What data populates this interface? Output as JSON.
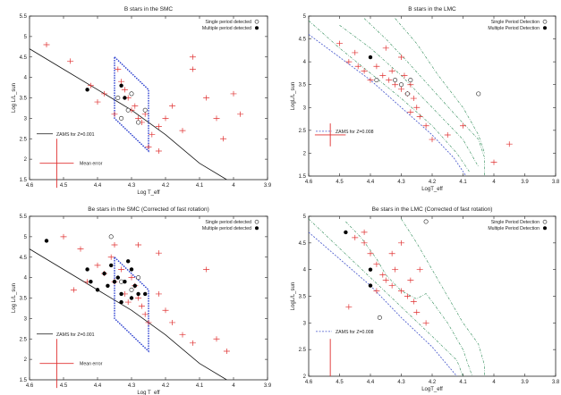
{
  "colors": {
    "axis": "#222222",
    "marker": "#e03030",
    "strip": "#2b3fcf",
    "zams_smc": "#111111",
    "zams_lmc": "#4455cc",
    "track": "#2e8b57"
  },
  "chart_data": [
    {
      "type": "scatter",
      "title": "B stars in the SMC",
      "xlabel": "Log T_eff",
      "ylabel": "Log L/L_sun",
      "xlim": [
        4.6,
        3.9
      ],
      "ylim": [
        1.5,
        5.5
      ],
      "xticks": [
        "4.6",
        "4.5",
        "4.4",
        "4.3",
        "4.2",
        "4.1",
        "4",
        "3.9"
      ],
      "yticks": [
        "1.5",
        "2",
        "2.5",
        "3",
        "3.5",
        "4",
        "4.5",
        "5",
        "5.5"
      ],
      "legend": {
        "single": "Single period detected",
        "multiple": "Multiple period detected",
        "zams": "ZAMS for Z=0.001",
        "error": "Mean error"
      },
      "zams": [
        [
          4.6,
          4.7
        ],
        [
          4.5,
          4.2
        ],
        [
          4.4,
          3.7
        ],
        [
          4.3,
          3.2
        ],
        [
          4.2,
          2.6
        ],
        [
          4.1,
          1.9
        ],
        [
          4.02,
          1.5
        ]
      ],
      "strip": [
        [
          4.35,
          4.5
        ],
        [
          4.25,
          3.7
        ],
        [
          4.25,
          2.2
        ],
        [
          4.35,
          3.0
        ]
      ],
      "crosses": [
        [
          4.55,
          4.8
        ],
        [
          4.48,
          4.4
        ],
        [
          4.42,
          3.8
        ],
        [
          4.38,
          3.6
        ],
        [
          4.34,
          4.2
        ],
        [
          4.33,
          3.9
        ],
        [
          4.32,
          3.7
        ],
        [
          4.31,
          3.5
        ],
        [
          4.3,
          3.2
        ],
        [
          4.29,
          3.3
        ],
        [
          4.28,
          3.0
        ],
        [
          4.27,
          2.9
        ],
        [
          4.26,
          3.1
        ],
        [
          4.24,
          2.6
        ],
        [
          4.22,
          2.8
        ],
        [
          4.2,
          3.0
        ],
        [
          4.18,
          3.3
        ],
        [
          4.15,
          2.7
        ],
        [
          4.12,
          4.2
        ],
        [
          4.12,
          4.5
        ],
        [
          4.08,
          3.5
        ],
        [
          4.05,
          3.0
        ],
        [
          4.03,
          2.5
        ],
        [
          4.0,
          3.6
        ],
        [
          3.98,
          3.1
        ],
        [
          4.25,
          2.3
        ],
        [
          4.22,
          2.2
        ],
        [
          4.4,
          3.4
        ],
        [
          4.35,
          3.1
        ]
      ],
      "singles": [
        [
          4.34,
          3.5
        ],
        [
          4.3,
          3.6
        ],
        [
          4.31,
          3.2
        ],
        [
          4.28,
          2.9
        ],
        [
          4.33,
          3.0
        ],
        [
          4.26,
          3.2
        ]
      ],
      "multiples": [
        [
          4.43,
          3.7
        ],
        [
          4.33,
          3.8
        ],
        [
          4.32,
          3.5
        ]
      ],
      "error_bar": {
        "x": 4.52,
        "y": 1.9,
        "dx": 0.05,
        "dy": 0.6
      }
    },
    {
      "type": "scatter",
      "title": "B stars in the LMC",
      "xlabel": "LogT_eff",
      "ylabel": "LogL/L_sun",
      "xlim": [
        4.6,
        3.8
      ],
      "ylim": [
        1.5,
        5.0
      ],
      "xticks": [
        "4.6",
        "4.5",
        "4.4",
        "4.3",
        "4.2",
        "4.1",
        "4",
        "3.9",
        "3.8"
      ],
      "yticks": [
        "1.5",
        "2",
        "2.5",
        "3",
        "3.5",
        "4",
        "4.5",
        "5"
      ],
      "legend": {
        "single": "Single Period Detection",
        "multiple": "Multiple Period Detection",
        "zams": "ZAMS for Z=0.008"
      },
      "zams": [
        [
          4.6,
          4.6
        ],
        [
          4.5,
          4.1
        ],
        [
          4.4,
          3.6
        ],
        [
          4.3,
          3.0
        ],
        [
          4.2,
          2.4
        ],
        [
          4.13,
          1.9
        ],
        [
          4.09,
          1.5
        ]
      ],
      "tracks": [
        [
          [
            4.6,
            4.9
          ],
          [
            4.5,
            4.3
          ],
          [
            4.4,
            3.75
          ],
          [
            4.3,
            3.2
          ],
          [
            4.2,
            2.6
          ],
          [
            4.12,
            2.0
          ],
          [
            4.08,
            1.6
          ]
        ],
        [
          [
            4.5,
            4.8
          ],
          [
            4.4,
            4.3
          ],
          [
            4.3,
            3.7
          ],
          [
            4.2,
            3.0
          ],
          [
            4.1,
            2.3
          ],
          [
            4.05,
            1.7
          ]
        ],
        [
          [
            4.42,
            4.95
          ],
          [
            4.35,
            4.5
          ],
          [
            4.28,
            4.0
          ],
          [
            4.2,
            3.4
          ],
          [
            4.12,
            2.8
          ],
          [
            4.05,
            2.3
          ],
          [
            4.03,
            1.9
          ],
          [
            4.03,
            1.5
          ]
        ],
        [
          [
            4.32,
            4.95
          ],
          [
            4.25,
            4.4
          ],
          [
            4.18,
            3.7
          ],
          [
            4.1,
            3.0
          ],
          [
            4.05,
            2.4
          ],
          [
            4.03,
            2.0
          ]
        ]
      ],
      "crosses": [
        [
          4.5,
          4.4
        ],
        [
          4.47,
          4.0
        ],
        [
          4.44,
          3.9
        ],
        [
          4.42,
          3.8
        ],
        [
          4.4,
          3.6
        ],
        [
          4.38,
          3.9
        ],
        [
          4.36,
          3.7
        ],
        [
          4.34,
          3.6
        ],
        [
          4.33,
          3.8
        ],
        [
          4.32,
          3.5
        ],
        [
          4.3,
          3.4
        ],
        [
          4.29,
          3.7
        ],
        [
          4.28,
          3.3
        ],
        [
          4.27,
          3.5
        ],
        [
          4.26,
          3.2
        ],
        [
          4.25,
          3.0
        ],
        [
          4.24,
          2.8
        ],
        [
          4.22,
          2.6
        ],
        [
          4.2,
          2.3
        ],
        [
          4.15,
          2.4
        ],
        [
          4.1,
          2.6
        ],
        [
          4.0,
          1.8
        ],
        [
          3.95,
          2.2
        ],
        [
          4.45,
          4.2
        ],
        [
          4.35,
          4.3
        ],
        [
          4.3,
          4.1
        ],
        [
          4.27,
          2.9
        ]
      ],
      "singles": [
        [
          4.38,
          3.6
        ],
        [
          4.32,
          3.6
        ],
        [
          4.3,
          3.5
        ],
        [
          4.28,
          3.3
        ],
        [
          4.27,
          3.6
        ],
        [
          4.05,
          3.3
        ]
      ],
      "multiples": [
        [
          4.4,
          4.1
        ]
      ],
      "error_bar": {
        "x": 4.53,
        "y": 2.4,
        "dx": 0.05,
        "dy": 0.25
      }
    },
    {
      "type": "scatter",
      "title": "Be stars in the SMC (Corrected of fast rotation)",
      "xlabel": "Log T_eff",
      "ylabel": "Log L/L_sun",
      "xlim": [
        4.6,
        3.9
      ],
      "ylim": [
        1.5,
        5.5
      ],
      "xticks": [
        "4.6",
        "4.5",
        "4.4",
        "4.3",
        "4.2",
        "4.1",
        "4",
        "3.9"
      ],
      "yticks": [
        "1.5",
        "2",
        "2.5",
        "3",
        "3.5",
        "4",
        "4.5",
        "5",
        "5.5"
      ],
      "legend": {
        "single": "Single period detected",
        "multiple": "Multiple period detected",
        "zams": "ZAMS for Z=0.001",
        "error": "Mean error"
      },
      "zams": [
        [
          4.6,
          4.7
        ],
        [
          4.5,
          4.2
        ],
        [
          4.4,
          3.7
        ],
        [
          4.3,
          3.2
        ],
        [
          4.2,
          2.6
        ],
        [
          4.1,
          1.9
        ],
        [
          4.02,
          1.5
        ]
      ],
      "strip": [
        [
          4.35,
          4.5
        ],
        [
          4.25,
          3.7
        ],
        [
          4.25,
          2.2
        ],
        [
          4.35,
          3.0
        ]
      ],
      "crosses": [
        [
          4.5,
          5.0
        ],
        [
          4.45,
          4.7
        ],
        [
          4.4,
          4.3
        ],
        [
          4.38,
          4.1
        ],
        [
          4.36,
          4.5
        ],
        [
          4.35,
          3.9
        ],
        [
          4.33,
          4.2
        ],
        [
          4.32,
          3.6
        ],
        [
          4.31,
          3.4
        ],
        [
          4.3,
          4.0
        ],
        [
          4.29,
          3.8
        ],
        [
          4.28,
          3.5
        ],
        [
          4.27,
          3.3
        ],
        [
          4.26,
          3.1
        ],
        [
          4.25,
          2.9
        ],
        [
          4.22,
          3.6
        ],
        [
          4.2,
          3.2
        ],
        [
          4.18,
          2.9
        ],
        [
          4.15,
          2.6
        ],
        [
          4.12,
          2.4
        ],
        [
          4.08,
          4.2
        ],
        [
          4.05,
          2.5
        ],
        [
          4.02,
          2.2
        ],
        [
          4.22,
          4.6
        ],
        [
          4.28,
          4.8
        ],
        [
          4.35,
          4.8
        ],
        [
          4.43,
          3.9
        ],
        [
          4.47,
          3.7
        ]
      ],
      "singles": [
        [
          4.36,
          5.0
        ],
        [
          4.33,
          3.9
        ],
        [
          4.3,
          3.7
        ],
        [
          4.28,
          4.0
        ]
      ],
      "multiples": [
        [
          4.55,
          4.9
        ],
        [
          4.43,
          4.2
        ],
        [
          4.42,
          3.9
        ],
        [
          4.4,
          3.7
        ],
        [
          4.38,
          4.1
        ],
        [
          4.37,
          3.8
        ],
        [
          4.36,
          4.3
        ],
        [
          4.35,
          3.9
        ],
        [
          4.34,
          4.0
        ],
        [
          4.33,
          3.6
        ],
        [
          4.32,
          3.9
        ],
        [
          4.31,
          4.4
        ],
        [
          4.3,
          4.2
        ],
        [
          4.29,
          3.8
        ],
        [
          4.28,
          3.6
        ],
        [
          4.26,
          3.6
        ],
        [
          4.3,
          3.5
        ],
        [
          4.33,
          3.4
        ]
      ],
      "error_bar": {
        "x": 4.52,
        "y": 1.9,
        "dx": 0.05,
        "dy": 0.6
      }
    },
    {
      "type": "scatter",
      "title": "Be stars in the LMC (Corrected of fast rotation)",
      "xlabel": "LogT_eff",
      "ylabel": "LogL/L_sun",
      "xlim": [
        4.6,
        3.8
      ],
      "ylim": [
        2.0,
        5.0
      ],
      "xticks": [
        "4.6",
        "4.5",
        "4.4",
        "4.3",
        "4.2",
        "4.1",
        "4",
        "3.9",
        "3.8"
      ],
      "yticks": [
        "2",
        "2.5",
        "3",
        "3.5",
        "4",
        "4.5",
        "5"
      ],
      "legend": {
        "single": "Single Period Detection",
        "multiple": "Multiple Period Detection",
        "zams": "ZAMS for Z=0.008"
      },
      "zams": [
        [
          4.6,
          4.7
        ],
        [
          4.5,
          4.2
        ],
        [
          4.4,
          3.7
        ],
        [
          4.3,
          3.1
        ],
        [
          4.2,
          2.55
        ],
        [
          4.12,
          2.0
        ]
      ],
      "tracks": [
        [
          [
            4.6,
            4.95
          ],
          [
            4.5,
            4.4
          ],
          [
            4.4,
            3.85
          ],
          [
            4.3,
            3.3
          ],
          [
            4.2,
            2.75
          ],
          [
            4.12,
            2.3
          ],
          [
            4.1,
            2.0
          ]
        ],
        [
          [
            4.48,
            4.9
          ],
          [
            4.43,
            4.6
          ],
          [
            4.38,
            4.2
          ],
          [
            4.35,
            3.9
          ],
          [
            4.3,
            3.6
          ],
          [
            4.25,
            3.45
          ],
          [
            4.22,
            3.55
          ],
          [
            4.2,
            3.4
          ],
          [
            4.15,
            3.0
          ],
          [
            4.1,
            2.5
          ],
          [
            4.07,
            2.0
          ]
        ],
        [
          [
            4.3,
            4.95
          ],
          [
            4.25,
            4.5
          ],
          [
            4.2,
            4.0
          ],
          [
            4.15,
            3.5
          ],
          [
            4.1,
            3.0
          ],
          [
            4.05,
            2.6
          ],
          [
            4.03,
            2.2
          ],
          [
            4.03,
            2.0
          ]
        ]
      ],
      "crosses": [
        [
          4.45,
          4.6
        ],
        [
          4.42,
          4.5
        ],
        [
          4.4,
          4.3
        ],
        [
          4.38,
          4.1
        ],
        [
          4.36,
          3.9
        ],
        [
          4.35,
          3.8
        ],
        [
          4.33,
          3.7
        ],
        [
          4.32,
          4.0
        ],
        [
          4.3,
          3.6
        ],
        [
          4.28,
          3.5
        ],
        [
          4.27,
          3.8
        ],
        [
          4.26,
          3.4
        ],
        [
          4.25,
          3.2
        ],
        [
          4.42,
          4.7
        ],
        [
          4.38,
          3.6
        ],
        [
          4.33,
          4.3
        ],
        [
          4.3,
          4.5
        ],
        [
          4.24,
          4.0
        ],
        [
          4.22,
          3.0
        ],
        [
          4.47,
          3.3
        ]
      ],
      "singles": [
        [
          4.37,
          3.1
        ],
        [
          4.22,
          4.9
        ]
      ],
      "multiples": [
        [
          4.48,
          4.7
        ],
        [
          4.4,
          4.0
        ],
        [
          4.4,
          3.7
        ]
      ],
      "error_bar": {
        "x": 4.53,
        "y": 2.35,
        "dx": 0.0,
        "dy": 0.35
      }
    }
  ]
}
